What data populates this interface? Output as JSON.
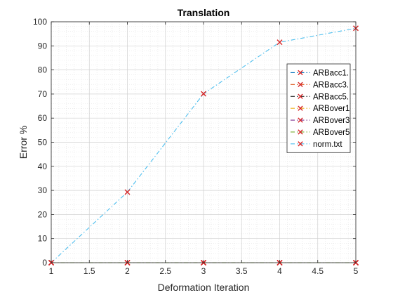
{
  "chart_data": {
    "type": "line",
    "title": "Translation",
    "xlabel": "Deformation Iteration",
    "ylabel": "Error %",
    "xlim": [
      1,
      5
    ],
    "ylim": [
      0,
      100
    ],
    "xticks": [
      "1",
      "1.5",
      "2",
      "2.5",
      "3",
      "3.5",
      "4",
      "4.5",
      "5"
    ],
    "yticks": [
      "0",
      "10",
      "20",
      "30",
      "40",
      "50",
      "60",
      "70",
      "80",
      "90",
      "100"
    ],
    "grid": "on (major and minor, dotted)",
    "legend_location": "right",
    "marker": "x",
    "marker_color": "#d62728",
    "x": [
      1,
      2,
      3,
      4,
      5
    ],
    "series": [
      {
        "name": "ARBacc1.",
        "color": "#0072bd",
        "values": [
          0,
          0,
          0,
          0,
          0
        ]
      },
      {
        "name": "ARBacc3.",
        "color": "#d95319",
        "values": [
          0,
          0,
          0,
          0,
          0
        ]
      },
      {
        "name": "ARBacc5.",
        "color": "#000000",
        "values": [
          0,
          0,
          0,
          0,
          0
        ]
      },
      {
        "name": "ARBover1",
        "color": "#edb120",
        "values": [
          0,
          0,
          0,
          0,
          0
        ]
      },
      {
        "name": "ARBover3",
        "color": "#7e2f8e",
        "values": [
          0,
          0,
          0,
          0,
          0
        ]
      },
      {
        "name": "ARBover5",
        "color": "#77ac30",
        "values": [
          0,
          0,
          0,
          0,
          0
        ]
      },
      {
        "name": "norm.txt",
        "color": "#4dbeee",
        "values": [
          0,
          29.3,
          70.1,
          91.5,
          97.3
        ]
      }
    ]
  }
}
